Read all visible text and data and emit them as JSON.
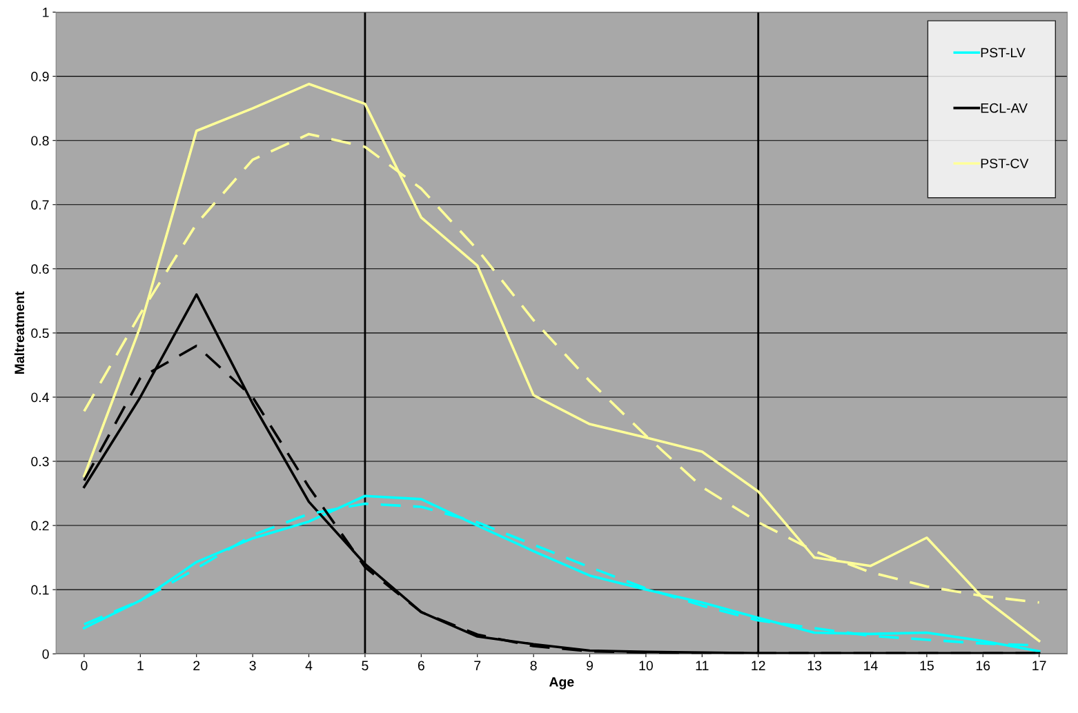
{
  "chart_data": {
    "type": "line",
    "xlabel": "Age",
    "ylabel": "Maltreatment",
    "categories": [
      "0",
      "1",
      "2",
      "3",
      "4",
      "5",
      "6",
      "7",
      "8",
      "9",
      "10",
      "11",
      "12",
      "13",
      "14",
      "15",
      "16",
      "17"
    ],
    "ylim": [
      0,
      1
    ],
    "yticks": [
      0,
      0.1,
      0.2,
      0.3,
      0.4,
      0.5,
      0.6,
      0.7,
      0.8,
      0.9,
      1
    ],
    "grid": "y",
    "legend": "top right",
    "marker": "none",
    "series": [
      {
        "name": "PST-LV",
        "color": "#00ffff",
        "line_style": "solid",
        "values": [
          0.04,
          0.083,
          0.143,
          0.18,
          0.206,
          0.246,
          0.241,
          0.2,
          0.16,
          0.122,
          0.1,
          0.08,
          0.056,
          0.033,
          0.031,
          0.033,
          0.02,
          0.004
        ]
      },
      {
        "name": "ECL-AV",
        "color": "#000000",
        "line_style": "solid",
        "values": [
          0.26,
          0.4,
          0.56,
          0.39,
          0.237,
          0.14,
          0.065,
          0.027,
          0.015,
          0.005,
          0.003,
          0.002,
          0.001,
          0.001,
          0.001,
          0.001,
          0.001,
          0.001
        ]
      },
      {
        "name": "PST-CV",
        "color": "#ffff99",
        "line_style": "solid",
        "values": [
          0.277,
          0.51,
          0.815,
          0.85,
          0.888,
          0.857,
          0.68,
          0.605,
          0.403,
          0.358,
          0.337,
          0.315,
          0.253,
          0.15,
          0.137,
          0.181,
          0.087,
          0.02
        ]
      },
      {
        "color": "#00ffff",
        "line_style": "dashed",
        "values": [
          0.046,
          0.083,
          0.133,
          0.185,
          0.218,
          0.234,
          0.229,
          0.205,
          0.17,
          0.135,
          0.102,
          0.075,
          0.052,
          0.04,
          0.028,
          0.022,
          0.016,
          0.013
        ]
      },
      {
        "color": "#000000",
        "line_style": "dashed",
        "values": [
          0.27,
          0.43,
          0.48,
          0.4,
          0.26,
          0.135,
          0.065,
          0.03,
          0.012,
          0.004,
          0.002,
          0.001,
          0.001,
          0.001,
          0.001,
          0.001,
          0.001,
          0.001
        ]
      },
      {
        "color": "#ffff99",
        "line_style": "dashed",
        "values": [
          0.378,
          0.53,
          0.67,
          0.77,
          0.81,
          0.79,
          0.725,
          0.63,
          0.52,
          0.425,
          0.34,
          0.26,
          0.205,
          0.16,
          0.127,
          0.105,
          0.09,
          0.08
        ]
      }
    ],
    "ref_lines": [
      {
        "axis": "x",
        "value": "5",
        "color": "#000000"
      },
      {
        "axis": "x",
        "value": "12",
        "color": "#000000"
      }
    ]
  }
}
